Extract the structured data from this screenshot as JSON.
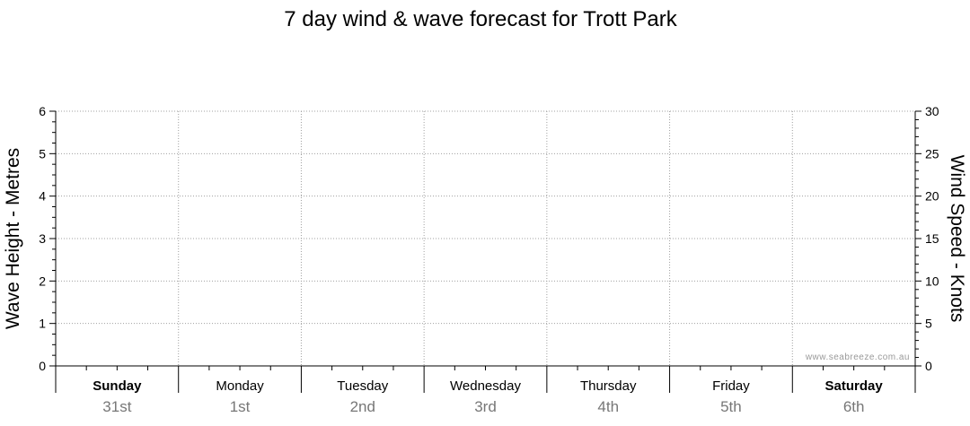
{
  "chart_data": {
    "type": "line",
    "title": "7 day wind & wave forecast for Trott Park",
    "ylabel_left": "Wave Height - Metres",
    "ylabel_right": "Wind Speed - Knots",
    "ylim_left": [
      0,
      6
    ],
    "ylim_right": [
      0,
      30
    ],
    "yticks_left": [
      "0",
      "1",
      "2",
      "3",
      "4",
      "5",
      "6"
    ],
    "yticks_right": [
      "0",
      "5",
      "10",
      "15",
      "20",
      "25",
      "30"
    ],
    "grid": true,
    "days": [
      {
        "name": "Sunday",
        "date": "31st",
        "bold": true
      },
      {
        "name": "Monday",
        "date": "1st",
        "bold": false
      },
      {
        "name": "Tuesday",
        "date": "2nd",
        "bold": false
      },
      {
        "name": "Wednesday",
        "date": "3rd",
        "bold": false
      },
      {
        "name": "Thursday",
        "date": "4th",
        "bold": false
      },
      {
        "name": "Friday",
        "date": "5th",
        "bold": false
      },
      {
        "name": "Saturday",
        "date": "6th",
        "bold": true
      }
    ],
    "series": []
  },
  "watermark": "www.seabreeze.com.au"
}
